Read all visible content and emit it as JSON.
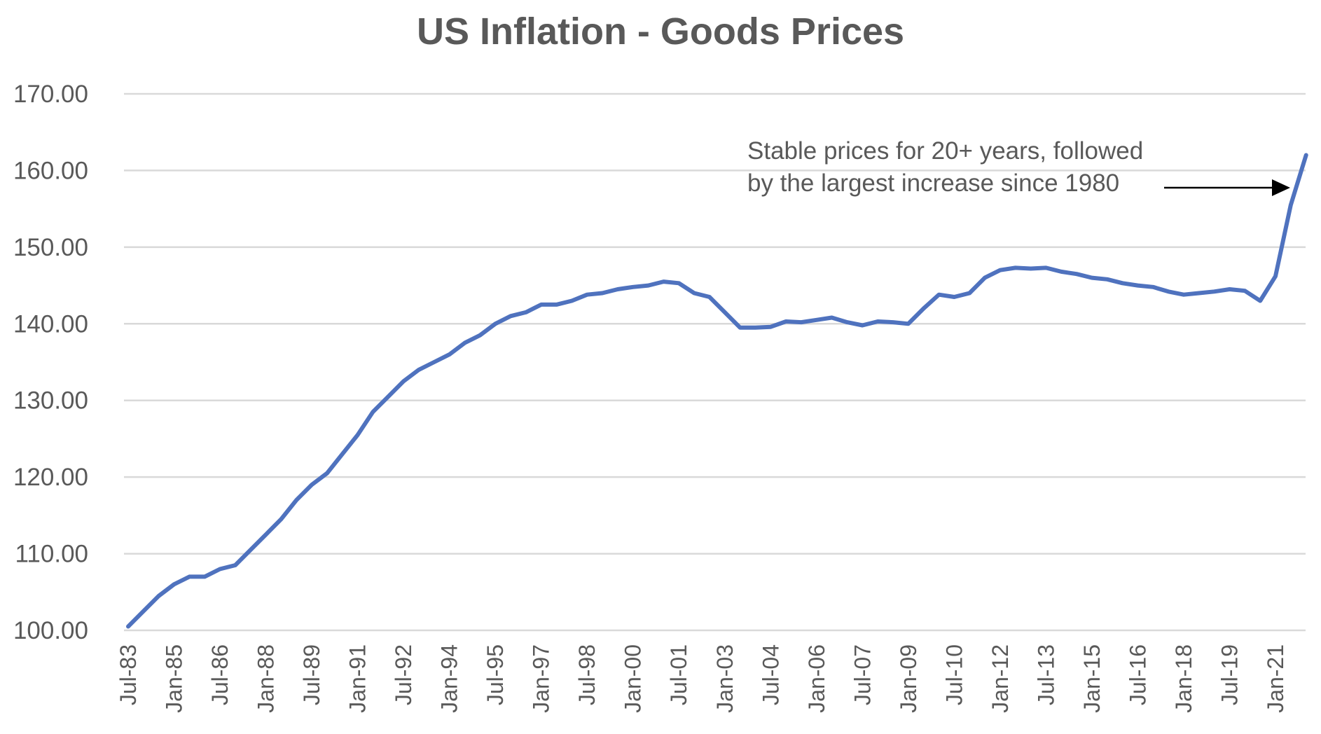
{
  "chart_data": {
    "type": "line",
    "title": "US Inflation - Goods Prices",
    "xlabel": "",
    "ylabel": "",
    "ylim": [
      100,
      170
    ],
    "yticks": [
      "100.00",
      "110.00",
      "120.00",
      "130.00",
      "140.00",
      "150.00",
      "160.00",
      "170.00"
    ],
    "ytick_values": [
      100,
      110,
      120,
      130,
      140,
      150,
      160,
      170
    ],
    "grid": true,
    "legend": "none",
    "x_start": "Jul-83",
    "x_step_months": 6,
    "xticks": [
      "Jul-83",
      "Jan-85",
      "Jul-86",
      "Jan-88",
      "Jul-89",
      "Jan-91",
      "Jul-92",
      "Jan-94",
      "Jul-95",
      "Jan-97",
      "Jul-98",
      "Jan-00",
      "Jul-01",
      "Jan-03",
      "Jul-04",
      "Jan-06",
      "Jul-07",
      "Jan-09",
      "Jul-10",
      "Jan-12",
      "Jul-13",
      "Jan-15",
      "Jul-16",
      "Jan-18",
      "Jul-19",
      "Jan-21"
    ],
    "xtick_step_months": 18,
    "series": [
      {
        "name": "Goods Prices",
        "color": "#4f72be",
        "x": [
          "Jul-83",
          "Jan-84",
          "Jul-84",
          "Jan-85",
          "Jul-85",
          "Jan-86",
          "Jul-86",
          "Jan-87",
          "Jul-87",
          "Jan-88",
          "Jul-88",
          "Jan-89",
          "Jul-89",
          "Jan-90",
          "Jul-90",
          "Jan-91",
          "Jul-91",
          "Jan-92",
          "Jul-92",
          "Jan-93",
          "Jul-93",
          "Jan-94",
          "Jul-94",
          "Jan-95",
          "Jul-95",
          "Jan-96",
          "Jul-96",
          "Jan-97",
          "Jul-97",
          "Jan-98",
          "Jul-98",
          "Jan-99",
          "Jul-99",
          "Jan-00",
          "Jul-00",
          "Jan-01",
          "Jul-01",
          "Jan-02",
          "Jul-02",
          "Jan-03",
          "Jul-03",
          "Jan-04",
          "Jul-04",
          "Jan-05",
          "Jul-05",
          "Jan-06",
          "Jul-06",
          "Jan-07",
          "Jul-07",
          "Jan-08",
          "Jul-08",
          "Jan-09",
          "Jul-09",
          "Jan-10",
          "Jul-10",
          "Jan-11",
          "Jul-11",
          "Jan-12",
          "Jul-12",
          "Jan-13",
          "Jul-13",
          "Jan-14",
          "Jul-14",
          "Jan-15",
          "Jul-15",
          "Jan-16",
          "Jul-16",
          "Jan-17",
          "Jul-17",
          "Jan-18",
          "Jul-18",
          "Jan-19",
          "Jul-19",
          "Jan-20",
          "Jul-20",
          "Jan-21",
          "Jul-21",
          "Jan-22"
        ],
        "values": [
          100.5,
          102.5,
          104.5,
          106.0,
          107.0,
          107.0,
          108.0,
          108.5,
          110.5,
          112.5,
          114.5,
          117.0,
          119.0,
          120.5,
          123.0,
          125.5,
          128.5,
          130.5,
          132.5,
          134.0,
          135.0,
          136.0,
          137.5,
          138.5,
          140.0,
          141.0,
          141.5,
          142.5,
          142.5,
          143.0,
          143.8,
          144.0,
          144.5,
          144.8,
          145.0,
          145.5,
          145.3,
          144.0,
          143.5,
          141.5,
          139.5,
          139.5,
          139.6,
          140.3,
          140.2,
          140.5,
          140.8,
          140.2,
          139.8,
          140.3,
          140.2,
          140.0,
          142.0,
          143.8,
          143.5,
          144.0,
          146.0,
          147.0,
          147.3,
          147.2,
          147.3,
          146.8,
          146.5,
          146.0,
          145.8,
          145.3,
          145.0,
          144.8,
          144.2,
          143.8,
          144.0,
          144.2,
          144.5,
          144.3,
          143.0,
          146.2,
          155.5,
          162.0
        ]
      }
    ],
    "annotations": [
      {
        "lines": [
          "Stable prices for 20+ years, followed",
          "by the largest increase since 1980"
        ],
        "arrow_target": "Jul-21",
        "arrow_color": "#000000"
      }
    ]
  }
}
